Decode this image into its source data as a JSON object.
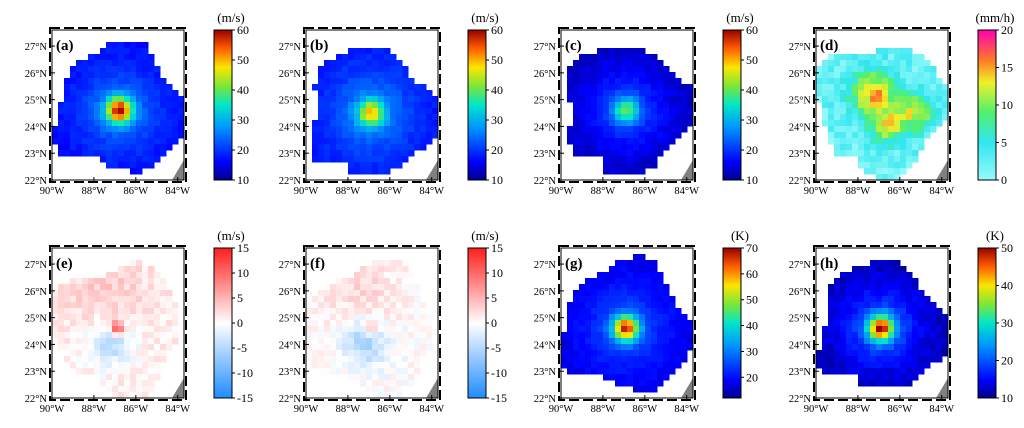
{
  "chart_data": [
    {
      "type": "heatmap",
      "panel_label": "(a)",
      "unit": "(m/s)",
      "cbar": {
        "min": 10,
        "max": 60,
        "ticks": [
          10,
          20,
          30,
          40,
          50,
          60
        ]
      },
      "colormap": "jet",
      "xticks": [
        "90°W",
        "88°W",
        "86°W",
        "84°W"
      ],
      "yticks": [
        "22°N",
        "23°N",
        "24°N",
        "25°N",
        "26°N",
        "27°N"
      ],
      "center": {
        "lon": -86.8,
        "lat": 24.6
      },
      "background_value": 20,
      "peak_value": 55
    },
    {
      "type": "heatmap",
      "panel_label": "(b)",
      "unit": "(m/s)",
      "cbar": {
        "min": 10,
        "max": 60,
        "ticks": [
          10,
          20,
          30,
          40,
          50,
          60
        ]
      },
      "colormap": "jet",
      "xticks": [
        "90°W",
        "88°W",
        "86°W",
        "84°W"
      ],
      "yticks": [
        "22°N",
        "23°N",
        "24°N",
        "25°N",
        "26°N",
        "27°N"
      ],
      "center": {
        "lon": -86.9,
        "lat": 24.5
      },
      "background_value": 21,
      "peak_value": 45
    },
    {
      "type": "heatmap",
      "panel_label": "(c)",
      "unit": "(m/s)",
      "cbar": {
        "min": 10,
        "max": 60,
        "ticks": [
          10,
          20,
          30,
          40,
          50,
          60
        ]
      },
      "colormap": "jet",
      "xticks": [
        "90°W",
        "88°W",
        "86°W",
        "84°W"
      ],
      "yticks": [
        "22°N",
        "23°N",
        "24°N",
        "25°N",
        "26°N",
        "27°N"
      ],
      "center": {
        "lon": -86.9,
        "lat": 24.6
      },
      "background_value": 16,
      "peak_value": 35
    },
    {
      "type": "heatmap",
      "panel_label": "(d)",
      "unit": "(mm/h)",
      "cbar": {
        "min": 0,
        "max": 20,
        "ticks": [
          0,
          5,
          10,
          15,
          20
        ]
      },
      "colormap": "rain",
      "xticks": [
        "90°W",
        "88°W",
        "86°W",
        "84°W"
      ],
      "yticks": [
        "22°N",
        "23°N",
        "24°N",
        "25°N",
        "26°N",
        "27°N"
      ],
      "center": {
        "lon": -86.9,
        "lat": 24.7
      },
      "background_value": 2,
      "peak_value": 15
    },
    {
      "type": "heatmap",
      "panel_label": "(e)",
      "unit": "(m/s)",
      "cbar": {
        "min": -15,
        "max": 15,
        "ticks": [
          -15,
          -10,
          -5,
          0,
          5,
          10,
          15
        ]
      },
      "colormap": "bwr",
      "xticks": [
        "90°W",
        "88°W",
        "86°W",
        "84°W"
      ],
      "yticks": [
        "22°N",
        "23°N",
        "24°N",
        "25°N",
        "26°N",
        "27°N"
      ],
      "center": {
        "lon": -86.9,
        "lat": 24.6
      },
      "background_value": 1,
      "peak_value": 14
    },
    {
      "type": "heatmap",
      "panel_label": "(f)",
      "unit": "(m/s)",
      "cbar": {
        "min": -15,
        "max": 15,
        "ticks": [
          -15,
          -10,
          -5,
          0,
          5,
          10,
          15
        ]
      },
      "colormap": "bwr",
      "xticks": [
        "90°W",
        "88°W",
        "86°W",
        "84°W"
      ],
      "yticks": [
        "22°N",
        "23°N",
        "24°N",
        "25°N",
        "26°N",
        "27°N"
      ],
      "center": {
        "lon": -86.9,
        "lat": 24.6
      },
      "background_value": 0,
      "peak_value": 6
    },
    {
      "type": "heatmap",
      "panel_label": "(g)",
      "unit": "(K)",
      "cbar": {
        "min": 12,
        "max": 70,
        "ticks": [
          20,
          30,
          40,
          50,
          60,
          70
        ]
      },
      "colormap": "jet",
      "xticks": [
        "90°W",
        "88°W",
        "86°W",
        "84°W"
      ],
      "yticks": [
        "22°N",
        "23°N",
        "24°N",
        "25°N",
        "26°N",
        "27°N"
      ],
      "center": {
        "lon": -86.9,
        "lat": 24.6
      },
      "background_value": 21,
      "peak_value": 62
    },
    {
      "type": "heatmap",
      "panel_label": "(h)",
      "unit": "(K)",
      "cbar": {
        "min": 10,
        "max": 50,
        "ticks": [
          10,
          20,
          30,
          40,
          50
        ]
      },
      "colormap": "jet",
      "xticks": [
        "90°W",
        "88°W",
        "86°W",
        "84°W"
      ],
      "yticks": [
        "22°N",
        "23°N",
        "24°N",
        "25°N",
        "26°N",
        "27°N"
      ],
      "center": {
        "lon": -86.9,
        "lat": 24.6
      },
      "background_value": 15,
      "peak_value": 45
    }
  ],
  "colors": {
    "land": "#808080",
    "frame": "#000000",
    "background": "#ffffff"
  }
}
